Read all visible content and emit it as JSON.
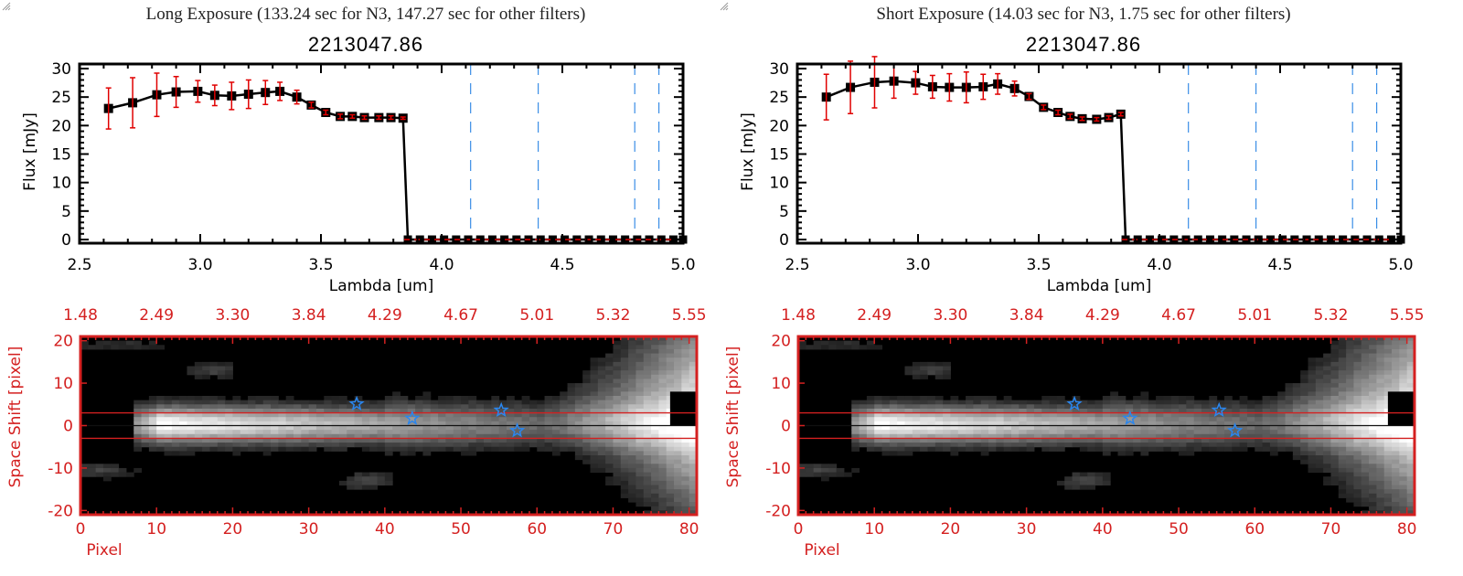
{
  "panels": [
    {
      "title": "Long Exposure (133.24 sec for N3, 147.27 sec for other filters)",
      "subtitle": "2213047.86"
    },
    {
      "title": "Short Exposure (14.03 sec for N3, 1.75 sec for other filters)",
      "subtitle": "2213047.86"
    }
  ],
  "chart_data": [
    {
      "type": "line",
      "panel": 0,
      "title": "2213047.86",
      "xlabel": "Lambda [um]",
      "ylabel": "Flux [mJy]",
      "xlim": [
        2.5,
        5.0
      ],
      "ylim": [
        0,
        30
      ],
      "xticks": [
        "2.5",
        "3.0",
        "3.5",
        "4.0",
        "4.5",
        "5.0"
      ],
      "yticks": [
        "0",
        "5",
        "10",
        "15",
        "20",
        "25",
        "30"
      ],
      "vlines": [
        4.12,
        4.4,
        4.8,
        4.9
      ],
      "hline": 0,
      "series": [
        {
          "name": "flux",
          "x": [
            2.62,
            2.72,
            2.82,
            2.9,
            2.99,
            3.06,
            3.13,
            3.2,
            3.27,
            3.33,
            3.4,
            3.46,
            3.52,
            3.58,
            3.63,
            3.68,
            3.74,
            3.79,
            3.84
          ],
          "y": [
            23.0,
            24.0,
            25.4,
            25.9,
            26.0,
            25.3,
            25.2,
            25.5,
            25.8,
            26.0,
            25.0,
            23.6,
            22.3,
            21.6,
            21.6,
            21.4,
            21.4,
            21.4,
            21.3
          ],
          "err": [
            3.6,
            4.4,
            3.8,
            2.7,
            1.9,
            1.8,
            2.4,
            2.5,
            2.1,
            1.6,
            1.2,
            0.5,
            0.4,
            0.4,
            0.3,
            0.3,
            0.3,
            0.3,
            0.2
          ]
        }
      ],
      "zero_points_x": [
        3.86,
        3.91,
        3.96,
        4.01,
        4.06,
        4.11,
        4.16,
        4.21,
        4.26,
        4.31,
        4.36,
        4.41,
        4.46,
        4.51,
        4.56,
        4.61,
        4.66,
        4.71,
        4.76,
        4.81,
        4.86,
        4.91,
        4.96,
        5.0
      ]
    },
    {
      "type": "line",
      "panel": 1,
      "title": "2213047.86",
      "xlabel": "Lambda [um]",
      "ylabel": "Flux [mJy]",
      "xlim": [
        2.5,
        5.0
      ],
      "ylim": [
        0,
        30
      ],
      "xticks": [
        "2.5",
        "3.0",
        "3.5",
        "4.0",
        "4.5",
        "5.0"
      ],
      "yticks": [
        "0",
        "5",
        "10",
        "15",
        "20",
        "25",
        "30"
      ],
      "vlines": [
        4.12,
        4.4,
        4.8,
        4.9
      ],
      "hline": 0,
      "series": [
        {
          "name": "flux",
          "x": [
            2.62,
            2.72,
            2.82,
            2.9,
            2.99,
            3.06,
            3.13,
            3.2,
            3.27,
            3.33,
            3.4,
            3.46,
            3.52,
            3.58,
            3.63,
            3.68,
            3.74,
            3.79,
            3.84
          ],
          "y": [
            25.0,
            26.7,
            27.6,
            27.8,
            27.5,
            26.8,
            26.7,
            26.7,
            26.8,
            27.3,
            26.5,
            25.1,
            23.2,
            22.3,
            21.6,
            21.2,
            21.1,
            21.4,
            22.0
          ],
          "err": [
            4.0,
            4.6,
            4.5,
            3.0,
            2.0,
            2.0,
            2.4,
            2.7,
            2.2,
            1.8,
            1.3,
            0.5,
            0.4,
            0.4,
            0.4,
            0.3,
            0.3,
            0.3,
            0.3
          ]
        }
      ],
      "zero_points_x": [
        3.86,
        3.91,
        3.96,
        4.01,
        4.06,
        4.11,
        4.16,
        4.21,
        4.26,
        4.31,
        4.36,
        4.41,
        4.46,
        4.51,
        4.56,
        4.61,
        4.66,
        4.71,
        4.76,
        4.81,
        4.86,
        4.91,
        4.96,
        5.0
      ]
    },
    {
      "type": "heatmap",
      "panel": 0,
      "xlabel": "Pixel",
      "ylabel": "Space Shift [pixel]",
      "xlim": [
        0,
        81
      ],
      "ylim": [
        -21,
        21
      ],
      "xticks": [
        "0",
        "10",
        "20",
        "30",
        "40",
        "50",
        "60",
        "70",
        "80"
      ],
      "yticks": [
        "-20",
        "-10",
        "0",
        "10",
        "20"
      ],
      "top_ticks": [
        "1.48",
        "2.49",
        "3.30",
        "3.84",
        "4.29",
        "4.67",
        "5.01",
        "5.32",
        "5.55"
      ],
      "aperture_lines": [
        3,
        -3
      ],
      "center_line": 0,
      "stars": [
        {
          "x": 36.3,
          "y": 5.1
        },
        {
          "x": 43.6,
          "y": 1.7
        },
        {
          "x": 55.3,
          "y": 3.6
        },
        {
          "x": 57.4,
          "y": -1.2
        }
      ]
    },
    {
      "type": "heatmap",
      "panel": 1,
      "xlabel": "Pixel",
      "ylabel": "Space Shift [pixel]",
      "xlim": [
        0,
        81
      ],
      "ylim": [
        -21,
        21
      ],
      "xticks": [
        "0",
        "10",
        "20",
        "30",
        "40",
        "50",
        "60",
        "70",
        "80"
      ],
      "yticks": [
        "-20",
        "-10",
        "0",
        "10",
        "20"
      ],
      "top_ticks": [
        "1.48",
        "2.49",
        "3.30",
        "3.84",
        "4.29",
        "4.67",
        "5.01",
        "5.32",
        "5.55"
      ],
      "aperture_lines": [
        3,
        -3
      ],
      "center_line": 0,
      "stars": [
        {
          "x": 36.3,
          "y": 5.1
        },
        {
          "x": 43.6,
          "y": 1.7
        },
        {
          "x": 55.3,
          "y": 3.6
        },
        {
          "x": 57.4,
          "y": -1.2
        }
      ]
    }
  ],
  "colors": {
    "axis_red": "#d42020",
    "error_red": "#e00000",
    "vline_blue": "#3a8ee6",
    "star_blue": "#2a86ee"
  }
}
